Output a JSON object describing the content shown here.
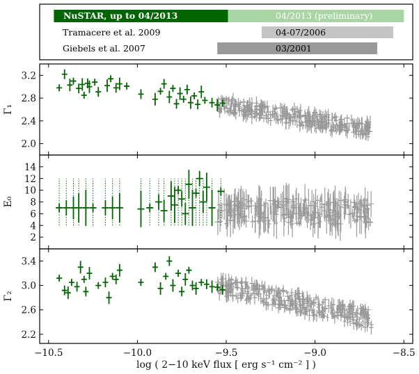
{
  "colors": {
    "nustar": "#006400",
    "nustar_prelim": "#a9d4a4",
    "history": "#999999",
    "tramacere_bar": "#c4c4c4",
    "giebels_bar": "#999999"
  },
  "legend_rows": [
    {
      "label": "NuSTAR, up to 04/2013",
      "bar_label": "04/2013 (preliminary)",
      "bar_start": -10.47,
      "split": -9.49,
      "bar_end": -8.5
    },
    {
      "label": "Tramacere et al. 2009",
      "bar_label": "04-07/2006",
      "bar_start": -9.3,
      "bar_end": -8.56
    },
    {
      "label": "Giebels et al. 2007",
      "bar_label": "03/2001",
      "bar_start": -9.55,
      "bar_end": -8.65
    }
  ],
  "chart_data": {
    "type": "scatter",
    "xlabel": "log ( 2−10 keV flux [ erg s⁻¹ cm⁻² ] )",
    "xlim": [
      -10.55,
      -8.45
    ],
    "xticks": [
      -10.5,
      -10.0,
      -9.5,
      -9.0,
      -8.5
    ],
    "xtick_labels": [
      "−10.5",
      "−10.0",
      "−9.5",
      "−9.0",
      "−8.5"
    ],
    "panels": [
      {
        "ylabel": "Γ₁",
        "ylim": [
          1.8,
          3.4
        ],
        "yticks": [
          2.0,
          2.4,
          2.8,
          3.2
        ],
        "ytick_labels": [
          "2.0",
          "2.4",
          "2.8",
          "3.2"
        ],
        "series": [
          {
            "color_key": "nustar",
            "points": [
              [
                -10.44,
                2.98
              ],
              [
                -10.41,
                3.22
              ],
              [
                -10.38,
                3.03
              ],
              [
                -10.36,
                3.1
              ],
              [
                -10.33,
                2.97
              ],
              [
                -10.31,
                3.04
              ],
              [
                -10.3,
                2.85
              ],
              [
                -10.28,
                3.06
              ],
              [
                -10.27,
                3.0
              ],
              [
                -10.24,
                3.08
              ],
              [
                -10.22,
                2.91
              ],
              [
                -10.17,
                3.02
              ],
              [
                -10.15,
                3.14
              ],
              [
                -10.12,
                2.98
              ],
              [
                -10.1,
                3.05
              ],
              [
                -10.06,
                3.01
              ],
              [
                -9.98,
                2.87
              ],
              [
                -9.9,
                2.78
              ],
              [
                -9.87,
                2.92
              ],
              [
                -9.85,
                3.05
              ],
              [
                -9.82,
                2.82
              ],
              [
                -9.8,
                2.97
              ],
              [
                -9.78,
                2.7
              ],
              [
                -9.76,
                2.88
              ],
              [
                -9.74,
                2.78
              ],
              [
                -9.72,
                2.95
              ],
              [
                -9.7,
                2.72
              ],
              [
                -9.68,
                2.84
              ],
              [
                -9.66,
                2.69
              ],
              [
                -9.64,
                2.91
              ],
              [
                -9.62,
                2.76
              ],
              [
                -9.58,
                2.72
              ],
              [
                -9.55,
                2.68
              ],
              [
                -9.52,
                2.71
              ]
            ]
          },
          {
            "color_key": "history",
            "trend": [
              [
                -9.55,
                2.7
              ],
              [
                -8.68,
                2.24
              ]
            ],
            "scatter": 0.14
          }
        ]
      },
      {
        "ylabel": "E₀",
        "ylim": [
          0,
          16
        ],
        "yticks": [
          2,
          4,
          6,
          8,
          10,
          12,
          14
        ],
        "ytick_labels": [
          "2",
          "4",
          "6",
          "8",
          "10",
          "12",
          "14"
        ],
        "series": [
          {
            "color_key": "nustar",
            "note_upper_limits": true,
            "points": [
              [
                -10.44,
                7.0
              ],
              [
                -10.4,
                7.0
              ],
              [
                -10.36,
                7.0
              ],
              [
                -10.33,
                7.0
              ],
              [
                -10.29,
                7.0
              ],
              [
                -10.25,
                7.0
              ],
              [
                -10.18,
                7.0
              ],
              [
                -10.14,
                7.0
              ],
              [
                -10.1,
                7.0
              ],
              [
                -9.98,
                6.8
              ],
              [
                -9.93,
                7.0
              ],
              [
                -9.88,
                8.0
              ],
              [
                -9.85,
                6.5
              ],
              [
                -9.81,
                9.0
              ],
              [
                -9.79,
                7.5
              ],
              [
                -9.77,
                10.0
              ],
              [
                -9.75,
                8.5
              ],
              [
                -9.73,
                6.0
              ],
              [
                -9.71,
                11.0
              ],
              [
                -9.69,
                7.0
              ],
              [
                -9.67,
                9.5
              ],
              [
                -9.65,
                12.0
              ],
              [
                -9.63,
                8.0
              ],
              [
                -9.61,
                10.5
              ],
              [
                -9.58,
                7.0
              ],
              [
                -9.53,
                9.8
              ]
            ]
          },
          {
            "color_key": "history",
            "trend": [
              [
                -9.55,
                6.5
              ],
              [
                -8.68,
                6.3
              ]
            ],
            "scatter": 2.2
          }
        ]
      },
      {
        "ylabel": "Γ₂",
        "ylim": [
          2.05,
          3.6
        ],
        "yticks": [
          2.2,
          2.6,
          3.0,
          3.4
        ],
        "ytick_labels": [
          "2.2",
          "2.6",
          "3.0",
          "3.4"
        ],
        "series": [
          {
            "color_key": "nustar",
            "points": [
              [
                -10.44,
                3.12
              ],
              [
                -10.41,
                2.92
              ],
              [
                -10.39,
                2.88
              ],
              [
                -10.37,
                3.05
              ],
              [
                -10.34,
                2.98
              ],
              [
                -10.32,
                3.3
              ],
              [
                -10.3,
                3.1
              ],
              [
                -10.29,
                2.9
              ],
              [
                -10.27,
                3.2
              ],
              [
                -10.22,
                3.0
              ],
              [
                -10.18,
                3.05
              ],
              [
                -10.16,
                2.8
              ],
              [
                -10.14,
                3.15
              ],
              [
                -10.12,
                3.1
              ],
              [
                -10.1,
                3.25
              ],
              [
                -9.98,
                3.05
              ],
              [
                -9.9,
                3.3
              ],
              [
                -9.87,
                2.95
              ],
              [
                -9.84,
                3.15
              ],
              [
                -9.82,
                3.4
              ],
              [
                -9.8,
                3.0
              ],
              [
                -9.77,
                3.2
              ],
              [
                -9.75,
                2.9
              ],
              [
                -9.73,
                3.1
              ],
              [
                -9.71,
                3.25
              ],
              [
                -9.69,
                3.0
              ],
              [
                -9.67,
                2.95
              ],
              [
                -9.64,
                3.05
              ],
              [
                -9.61,
                3.02
              ],
              [
                -9.58,
                2.98
              ],
              [
                -9.55,
                2.97
              ],
              [
                -9.52,
                2.93
              ]
            ]
          },
          {
            "color_key": "history",
            "trend": [
              [
                -9.55,
                3.0
              ],
              [
                -8.68,
                2.45
              ]
            ],
            "scatter": 0.16
          }
        ]
      }
    ]
  }
}
